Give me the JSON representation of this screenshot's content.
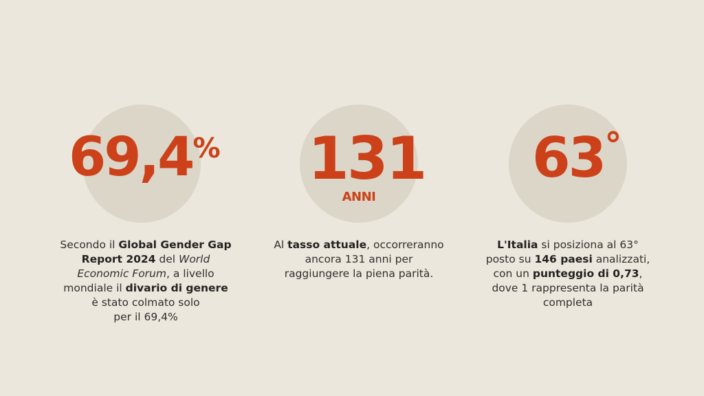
{
  "stats": [
    {
      "value": "69,4",
      "suffix": "%",
      "unit": "",
      "description_lines": [
        {
          "parts": [
            {
              "t": "Secondo il "
            },
            {
              "t": "Global Gender Gap",
              "b": true
            }
          ]
        },
        {
          "parts": [
            {
              "t": "Report 2024",
              "b": true
            },
            {
              "t": " del "
            },
            {
              "t": "World",
              "i": true
            }
          ]
        },
        {
          "parts": [
            {
              "t": "Economic Forum",
              "i": true
            },
            {
              "t": ", a livello"
            }
          ]
        },
        {
          "parts": [
            {
              "t": "mondiale il "
            },
            {
              "t": "divario di genere",
              "b": true
            }
          ]
        },
        {
          "parts": [
            {
              "t": "è stato colmato solo"
            }
          ]
        },
        {
          "parts": [
            {
              "t": "per il 69,4%"
            }
          ]
        }
      ]
    },
    {
      "value": "131",
      "suffix": "",
      "unit": "ANNI",
      "description_lines": [
        {
          "parts": [
            {
              "t": "Al "
            },
            {
              "t": "tasso attuale",
              "b": true
            },
            {
              "t": ", occorreranno"
            }
          ]
        },
        {
          "parts": [
            {
              "t": "ancora 131 anni per"
            }
          ]
        },
        {
          "parts": [
            {
              "t": "raggiungere la piena parità."
            }
          ]
        }
      ]
    },
    {
      "value": "63",
      "suffix": "°",
      "unit": "",
      "description_lines": [
        {
          "parts": [
            {
              "t": "L'Italia",
              "b": true
            },
            {
              "t": " si posiziona al 63°"
            }
          ]
        },
        {
          "parts": [
            {
              "t": "posto su "
            },
            {
              "t": "146 paesi",
              "b": true
            },
            {
              "t": " analizzati,"
            }
          ]
        },
        {
          "parts": [
            {
              "t": "con un "
            },
            {
              "t": "punteggio di 0,73",
              "b": true
            },
            {
              "t": ","
            }
          ]
        },
        {
          "parts": [
            {
              "t": "dove 1 rappresenta la parità"
            }
          ]
        },
        {
          "parts": [
            {
              "t": "completa"
            }
          ]
        }
      ]
    }
  ],
  "colors": {
    "background": "#ece7dc",
    "circle": "#dbd6c8",
    "accent": "#cc4119",
    "text": "#2f2f2f"
  }
}
